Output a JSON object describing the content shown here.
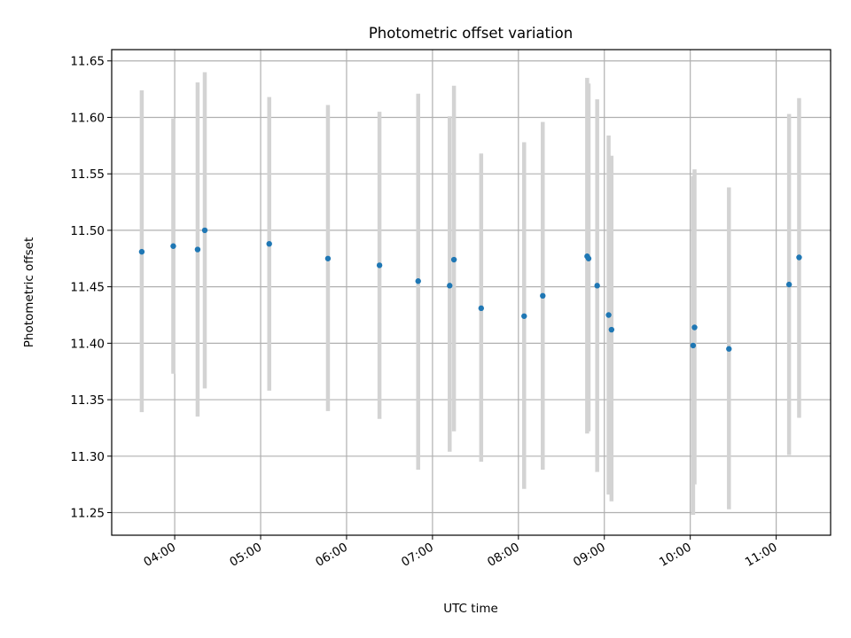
{
  "chart_data": {
    "type": "scatter",
    "title": "Photometric offset variation",
    "xlabel": "UTC time",
    "ylabel": "Photometric offset",
    "xlim": [
      "03:16",
      "11:38"
    ],
    "ylim": [
      11.23,
      11.66
    ],
    "grid": true,
    "x_ticks": [
      "04:00",
      "05:00",
      "06:00",
      "07:00",
      "08:00",
      "09:00",
      "10:00",
      "11:00"
    ],
    "y_ticks": [
      "11.25",
      "11.30",
      "11.35",
      "11.40",
      "11.45",
      "11.50",
      "11.55",
      "11.60",
      "11.65"
    ],
    "series": [
      {
        "marker_color": "#1f77b4",
        "errorbar_color": "#d3d3d3",
        "points": [
          {
            "t": "03:37",
            "y": 11.481,
            "lo": 11.339,
            "hi": 11.624
          },
          {
            "t": "03:59",
            "y": 11.486,
            "lo": 11.373,
            "hi": 11.599
          },
          {
            "t": "04:16",
            "y": 11.483,
            "lo": 11.335,
            "hi": 11.631
          },
          {
            "t": "04:21",
            "y": 11.5,
            "lo": 11.36,
            "hi": 11.64
          },
          {
            "t": "05:06",
            "y": 11.488,
            "lo": 11.358,
            "hi": 11.618
          },
          {
            "t": "05:47",
            "y": 11.475,
            "lo": 11.34,
            "hi": 11.611
          },
          {
            "t": "06:23",
            "y": 11.469,
            "lo": 11.333,
            "hi": 11.605
          },
          {
            "t": "06:50",
            "y": 11.455,
            "lo": 11.288,
            "hi": 11.621
          },
          {
            "t": "07:12",
            "y": 11.451,
            "lo": 11.304,
            "hi": 11.601
          },
          {
            "t": "07:15",
            "y": 11.474,
            "lo": 11.322,
            "hi": 11.628
          },
          {
            "t": "07:34",
            "y": 11.431,
            "lo": 11.295,
            "hi": 11.568
          },
          {
            "t": "08:04",
            "y": 11.424,
            "lo": 11.271,
            "hi": 11.578
          },
          {
            "t": "08:17",
            "y": 11.442,
            "lo": 11.288,
            "hi": 11.596
          },
          {
            "t": "08:48",
            "y": 11.477,
            "lo": 11.32,
            "hi": 11.635
          },
          {
            "t": "08:49",
            "y": 11.475,
            "lo": 11.322,
            "hi": 11.63
          },
          {
            "t": "08:55",
            "y": 11.451,
            "lo": 11.286,
            "hi": 11.616
          },
          {
            "t": "09:03",
            "y": 11.425,
            "lo": 11.266,
            "hi": 11.584
          },
          {
            "t": "09:05",
            "y": 11.412,
            "lo": 11.26,
            "hi": 11.566
          },
          {
            "t": "10:02",
            "y": 11.398,
            "lo": 11.248,
            "hi": 11.548
          },
          {
            "t": "10:03",
            "y": 11.414,
            "lo": 11.275,
            "hi": 11.554
          },
          {
            "t": "10:27",
            "y": 11.395,
            "lo": 11.253,
            "hi": 11.538
          },
          {
            "t": "11:09",
            "y": 11.452,
            "lo": 11.301,
            "hi": 11.603
          },
          {
            "t": "11:16",
            "y": 11.476,
            "lo": 11.334,
            "hi": 11.617
          }
        ]
      }
    ]
  }
}
